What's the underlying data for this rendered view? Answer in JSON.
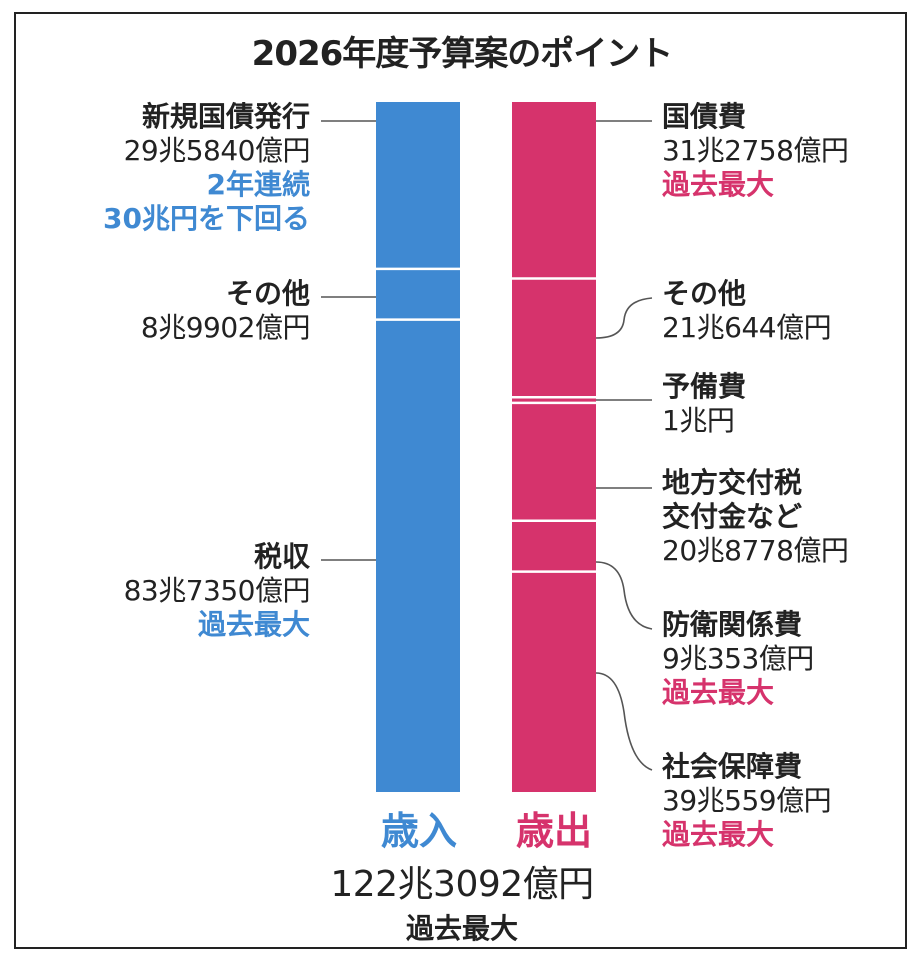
{
  "title": "2026年度予算案のポイント",
  "colors": {
    "revenue": "#3f89d2",
    "expenditure": "#d6336c",
    "line": "#555555"
  },
  "chart_data": {
    "type": "bar",
    "stacked": true,
    "unit": "億円",
    "series": [
      {
        "name": "歳入",
        "segments": [
          {
            "label": "新規国債発行",
            "display": "29兆5840億円",
            "value": 295840,
            "notes": [
              "2年連続",
              "30兆円を下回る"
            ]
          },
          {
            "label": "その他",
            "display": "8兆9902億円",
            "value": 89902,
            "notes": []
          },
          {
            "label": "税収",
            "display": "83兆7350億円",
            "value": 837350,
            "notes": [
              "過去最大"
            ]
          }
        ]
      },
      {
        "name": "歳出",
        "segments": [
          {
            "label": "国債費",
            "display": "31兆2758億円",
            "value": 312758,
            "notes": [
              "過去最大"
            ]
          },
          {
            "label": "その他",
            "display": "21兆644億円",
            "value": 210644,
            "notes": []
          },
          {
            "label": "予備費",
            "display": "1兆円",
            "value": 10000,
            "notes": []
          },
          {
            "label": "地方交付税交付金など",
            "display": "20兆8778億円",
            "value": 208778,
            "notes": []
          },
          {
            "label": "防衛関係費",
            "display": "9兆353億円",
            "value": 90353,
            "notes": [
              "過去最大"
            ]
          },
          {
            "label": "社会保障費",
            "display": "39兆559億円",
            "value": 390559,
            "notes": [
              "過去最大"
            ]
          }
        ]
      }
    ],
    "total": {
      "display": "122兆3092億円",
      "value": 1223092,
      "note": "過去最大"
    }
  },
  "labels": {
    "rev_debt": {
      "name": "新規国債発行",
      "val": "29兆5840億円",
      "note1": "2年連続",
      "note2": "30兆円を下回る"
    },
    "rev_other": {
      "name": "その他",
      "val": "8兆9902億円"
    },
    "rev_tax": {
      "name": "税収",
      "val": "83兆7350億円",
      "note": "過去最大"
    },
    "exp_debt": {
      "name": "国債費",
      "val": "31兆2758億円",
      "note": "過去最大"
    },
    "exp_other": {
      "name": "その他",
      "val": "21兆644億円"
    },
    "exp_reserve": {
      "name": "予備費",
      "val": "1兆円"
    },
    "exp_local": {
      "name1": "地方交付税",
      "name2": "交付金など",
      "val": "20兆8778億円"
    },
    "exp_defense": {
      "name": "防衛関係費",
      "val": "9兆353億円",
      "note": "過去最大"
    },
    "exp_social": {
      "name": "社会保障費",
      "val": "39兆559億円",
      "note": "過去最大"
    }
  },
  "bar_titles": {
    "revenue": "歳入",
    "expenditure": "歳出"
  },
  "total": {
    "value": "122兆3092億円",
    "note": "過去最大"
  }
}
